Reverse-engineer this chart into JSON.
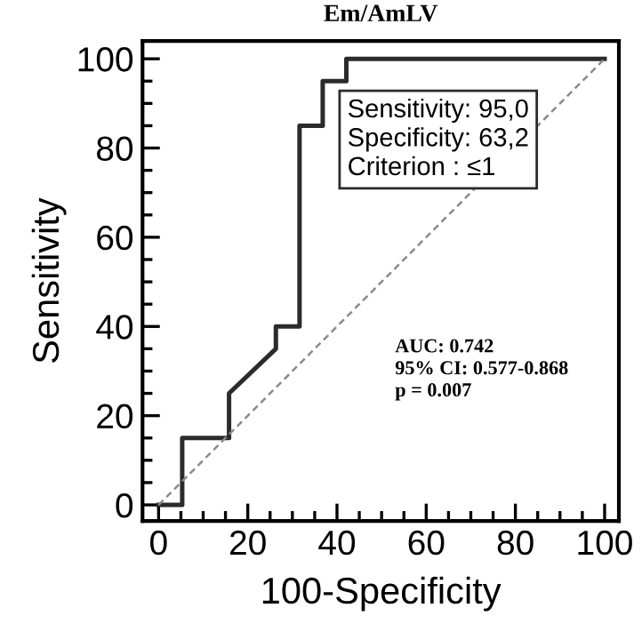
{
  "chart_data": {
    "type": "line",
    "title": "Em/AmLV",
    "xlabel": "100-Specificity",
    "ylabel": "Sensitivity",
    "series": [
      {
        "color": "#2b2b2b",
        "line_style": "solid",
        "x": [
          0,
          5.3,
          5.3,
          15.8,
          15.8,
          26.3,
          26.3,
          31.6,
          31.6,
          36.8,
          36.8,
          42.1,
          42.1,
          100
        ],
        "values": [
          0,
          0,
          15,
          15,
          25,
          35,
          40,
          40,
          85,
          85,
          95,
          95,
          100,
          100
        ]
      },
      {
        "color": "#8a8a8a",
        "line_style": "dashed",
        "x": [
          0,
          100
        ],
        "values": [
          0,
          100
        ]
      }
    ],
    "annotations": [
      "Sensitivity: 95,0\nSpecificity: 63,2\nCriterion : ≤1",
      "AUC: 0.742\n95% CI: 0.577-0.868\np = 0.007"
    ],
    "xlim": [
      -3.6,
      103.2
    ],
    "ylim": [
      -3.6,
      104
    ],
    "xticks": [
      0,
      {
        "value": 5,
        "label": null
      },
      {
        "value": 10,
        "label": null
      },
      {
        "value": 15,
        "label": null
      },
      20,
      {
        "value": 25,
        "label": null
      },
      {
        "value": 30,
        "label": null
      },
      {
        "value": 35,
        "label": null
      },
      40,
      {
        "value": 45,
        "label": null
      },
      {
        "value": 50,
        "label": null
      },
      {
        "value": 55,
        "label": null
      },
      60,
      {
        "value": 65,
        "label": null
      },
      {
        "value": 70,
        "label": null
      },
      {
        "value": 75,
        "label": null
      },
      80,
      {
        "value": 85,
        "label": null
      },
      {
        "value": 90,
        "label": null
      },
      {
        "value": 95,
        "label": null
      },
      100
    ],
    "yticks": [
      0,
      {
        "value": 5,
        "label": null
      },
      {
        "value": 10,
        "label": null
      },
      {
        "value": 15,
        "label": null
      },
      20,
      {
        "value": 25,
        "label": null
      },
      {
        "value": 30,
        "label": null
      },
      {
        "value": 35,
        "label": null
      },
      40,
      {
        "value": 45,
        "label": null
      },
      {
        "value": 50,
        "label": null
      },
      {
        "value": 55,
        "label": null
      },
      60,
      {
        "value": 65,
        "label": null
      },
      {
        "value": 70,
        "label": null
      },
      {
        "value": 75,
        "label": null
      },
      80,
      {
        "value": 85,
        "label": null
      },
      {
        "value": 90,
        "label": null
      },
      {
        "value": 95,
        "label": null
      },
      100
    ],
    "grid": false,
    "legend": false,
    "marker": "none"
  }
}
